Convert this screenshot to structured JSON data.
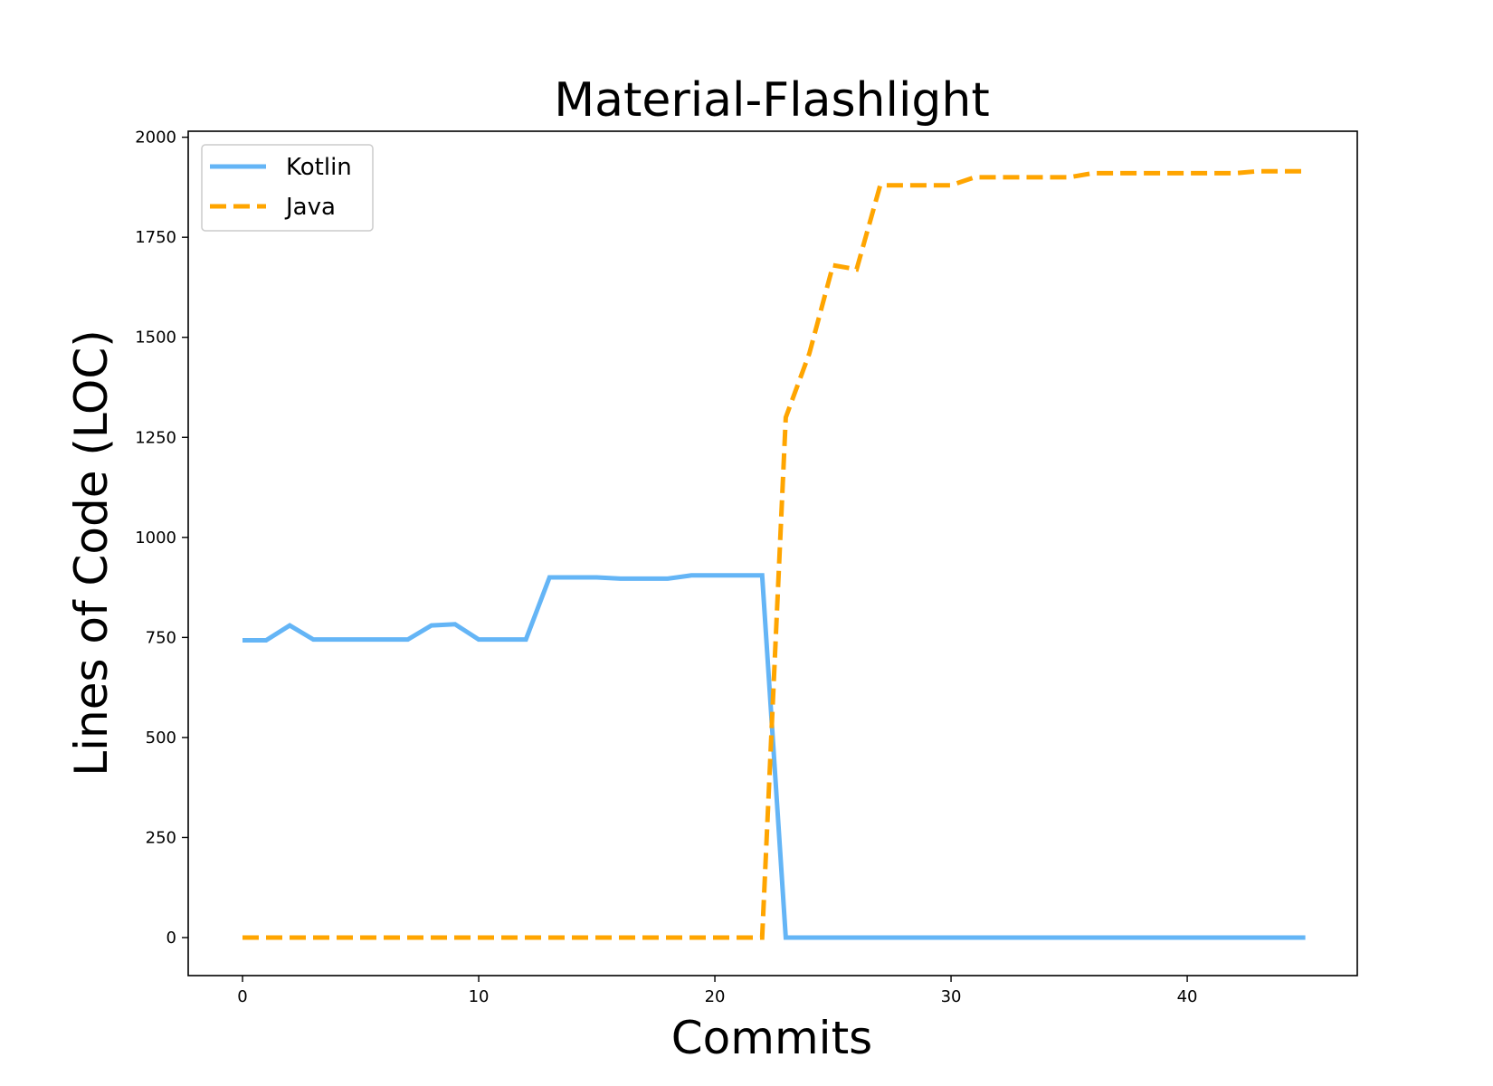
{
  "chart_data": {
    "type": "line",
    "title": "Material-Flashlight",
    "xlabel": "Commits",
    "ylabel": "Lines of Code (LOC)",
    "xlim": [
      -2.3,
      47.2
    ],
    "ylim": [
      -95,
      2015
    ],
    "xticks": [
      0,
      10,
      20,
      30,
      40
    ],
    "yticks": [
      0,
      250,
      500,
      750,
      1000,
      1250,
      1500,
      1750,
      2000
    ],
    "grid": false,
    "legend_position": "top-left",
    "series": [
      {
        "name": "Kotlin",
        "color": "#64b5f6",
        "style": "solid",
        "x": [
          0,
          1,
          2,
          3,
          4,
          5,
          6,
          7,
          8,
          9,
          10,
          11,
          12,
          13,
          14,
          15,
          16,
          17,
          18,
          19,
          20,
          21,
          22,
          23,
          24,
          25,
          26,
          27,
          28,
          29,
          30,
          31,
          32,
          33,
          34,
          35,
          36,
          37,
          38,
          39,
          40,
          41,
          42,
          43,
          44,
          45
        ],
        "y": [
          743,
          743,
          780,
          745,
          745,
          745,
          745,
          745,
          780,
          783,
          745,
          745,
          745,
          900,
          900,
          900,
          897,
          897,
          897,
          905,
          905,
          905,
          905,
          0,
          0,
          0,
          0,
          0,
          0,
          0,
          0,
          0,
          0,
          0,
          0,
          0,
          0,
          0,
          0,
          0,
          0,
          0,
          0,
          0,
          0,
          0
        ]
      },
      {
        "name": "Java",
        "color": "#ffa500",
        "style": "dashed",
        "x": [
          0,
          1,
          2,
          3,
          4,
          5,
          6,
          7,
          8,
          9,
          10,
          11,
          12,
          13,
          14,
          15,
          16,
          17,
          18,
          19,
          20,
          21,
          22,
          23,
          24,
          25,
          26,
          27,
          28,
          29,
          30,
          31,
          32,
          33,
          34,
          35,
          36,
          37,
          38,
          39,
          40,
          41,
          42,
          43,
          44,
          45
        ],
        "y": [
          0,
          0,
          0,
          0,
          0,
          0,
          0,
          0,
          0,
          0,
          0,
          0,
          0,
          0,
          0,
          0,
          0,
          0,
          0,
          0,
          0,
          0,
          0,
          1300,
          1460,
          1680,
          1670,
          1880,
          1880,
          1880,
          1880,
          1900,
          1900,
          1900,
          1900,
          1900,
          1910,
          1910,
          1910,
          1910,
          1910,
          1910,
          1910,
          1915,
          1915,
          1915
        ]
      }
    ]
  }
}
